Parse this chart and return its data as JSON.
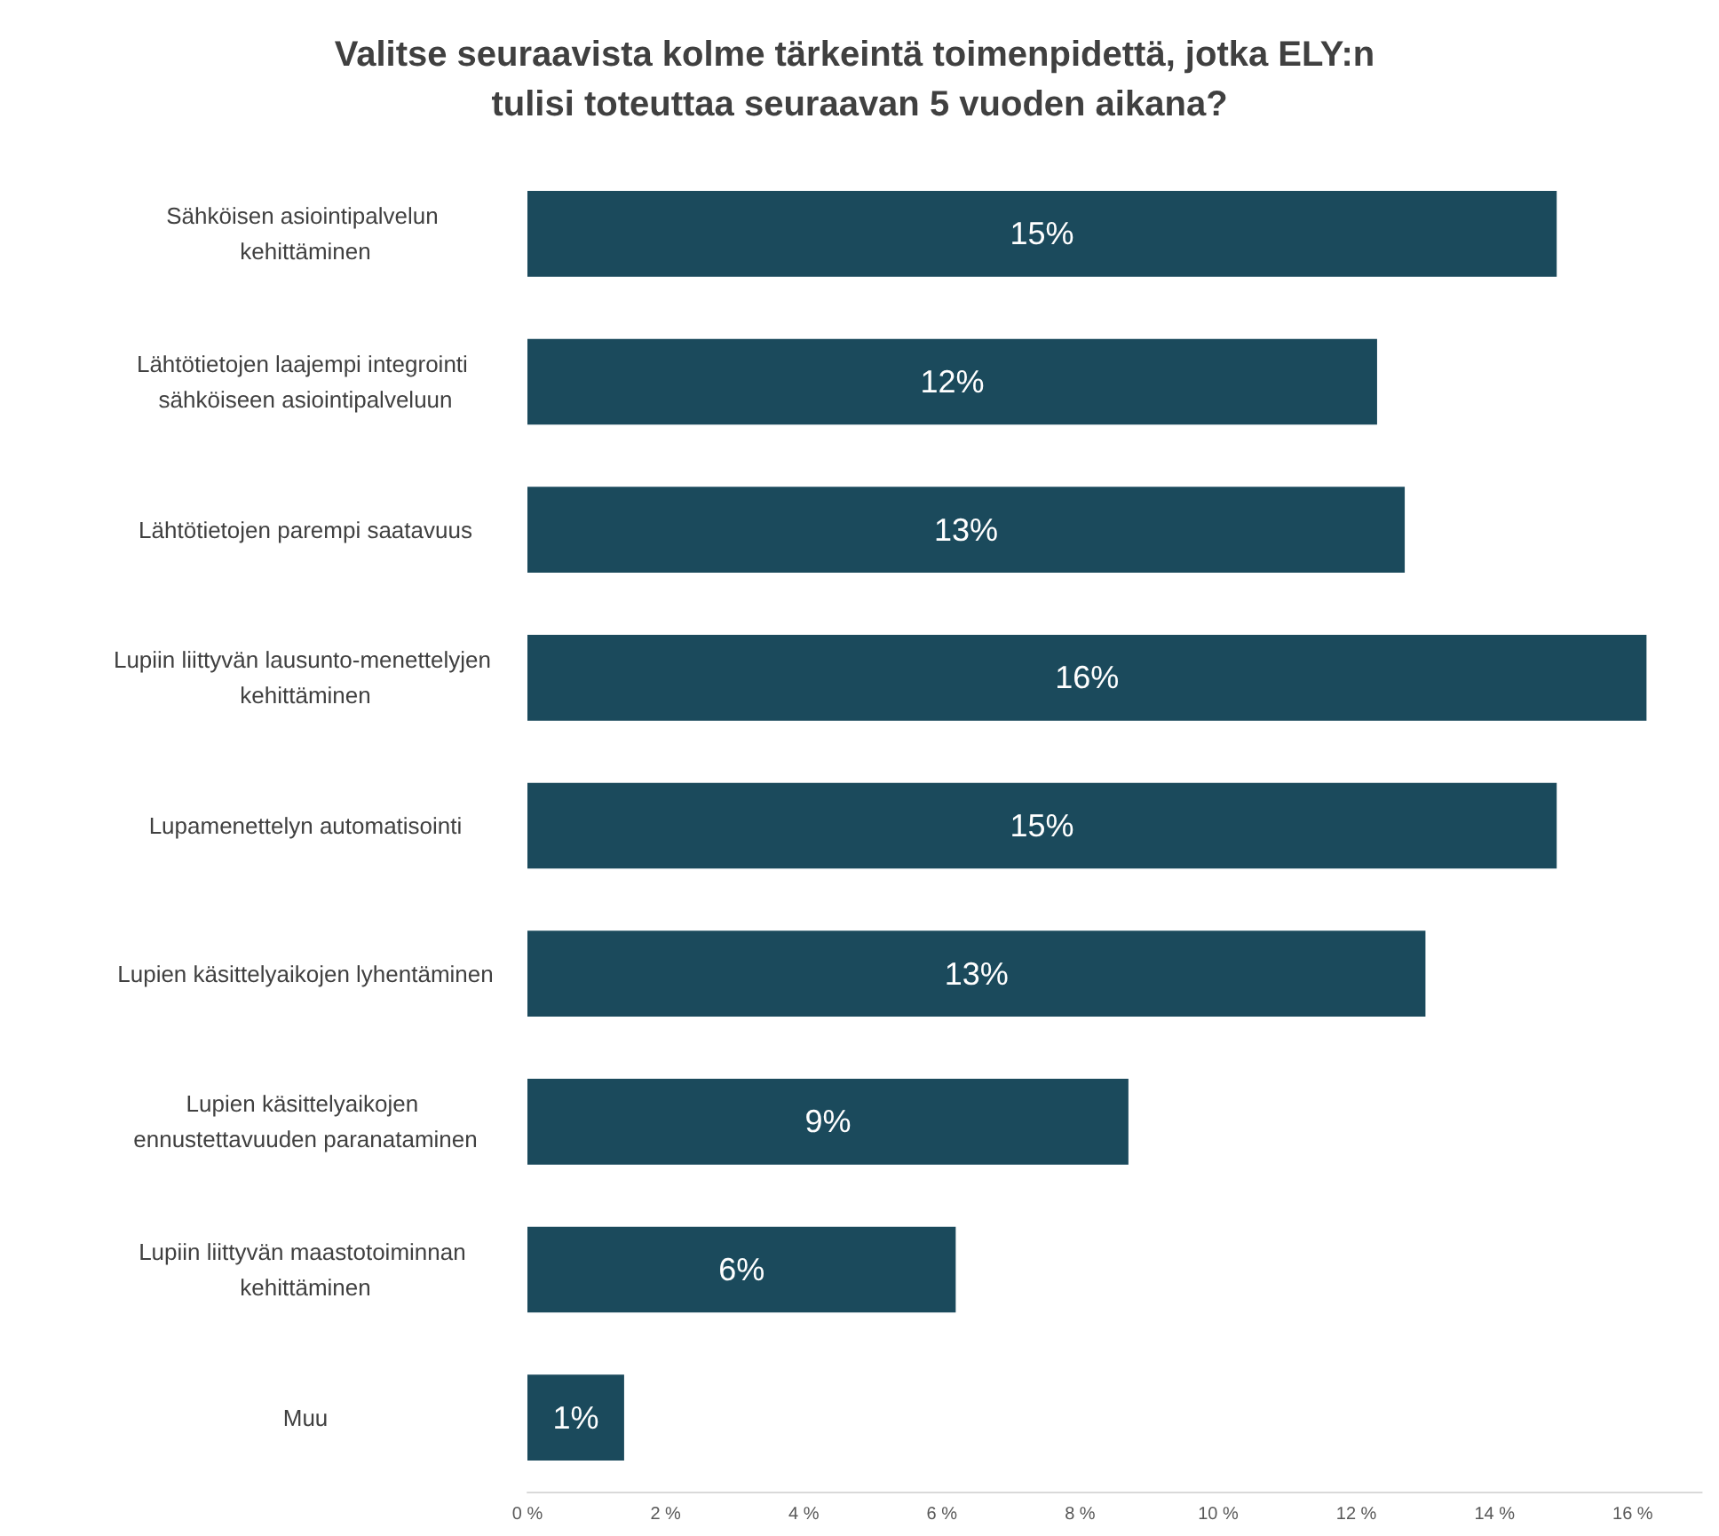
{
  "chart_data": {
    "type": "bar",
    "orientation": "horizontal",
    "title": "Valitse seuraavista kolme tärkeintä toimenpidettä, jotka ELY:n tulisi toteuttaa seuraavan 5 vuoden aikana?",
    "categories": [
      "Sähköisen asiointipalvelun kehittäminen",
      "Lähtötietojen laajempi integrointi sähköiseen asiointipalveluun",
      "Lähtötietojen parempi saatavuus",
      "Lupiin liittyvän lausunto-menettelyjen kehittäminen",
      "Lupamenettelyn automatisointi",
      "Lupien käsittelyaikojen lyhentäminen",
      "Lupien käsittelyaikojen ennustettavuuden paranataminen",
      "Lupiin liittyvän maastotoiminnan kehittäminen",
      "Muu"
    ],
    "values": [
      14.9,
      12.3,
      12.7,
      16.2,
      14.9,
      13.0,
      8.7,
      6.2,
      1.4
    ],
    "value_labels": [
      "15%",
      "12%",
      "13%",
      "16%",
      "15%",
      "13%",
      "9%",
      "6%",
      "1%"
    ],
    "color": "#1b4a5c",
    "xlim": [
      0,
      17
    ],
    "xticks": [
      {
        "value": 0,
        "label": "0 %"
      },
      {
        "value": 2,
        "label": "2 %"
      },
      {
        "value": 4,
        "label": "4 %"
      },
      {
        "value": 6,
        "label": "6 %"
      },
      {
        "value": 8,
        "label": "8 %"
      },
      {
        "value": 10,
        "label": "10 %"
      },
      {
        "value": 12,
        "label": "12 %"
      },
      {
        "value": 14,
        "label": "14 %"
      },
      {
        "value": 16,
        "label": "16 %"
      }
    ],
    "grid": false
  }
}
